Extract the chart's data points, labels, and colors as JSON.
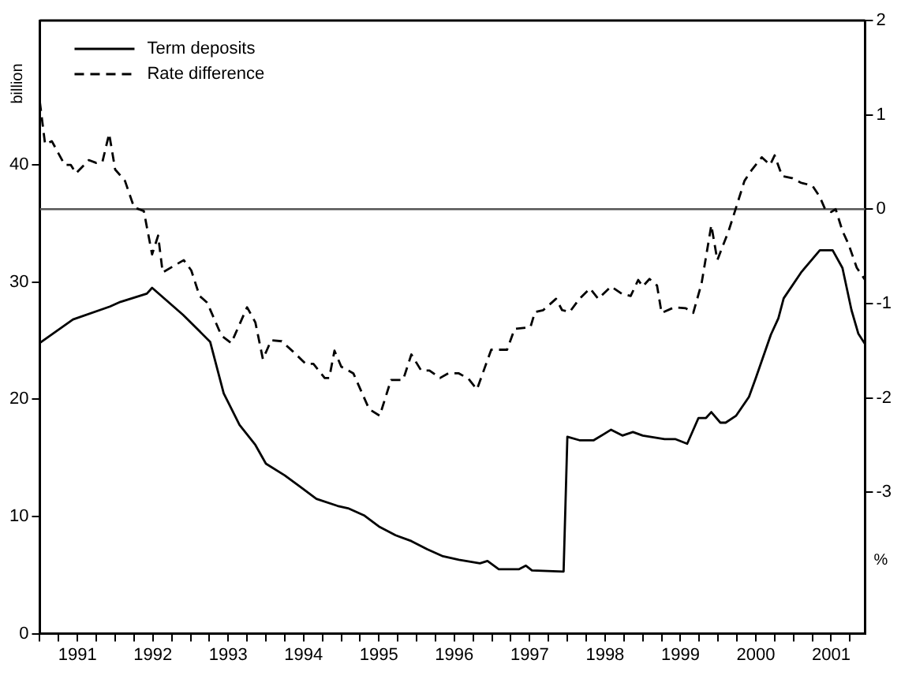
{
  "chart_data": {
    "type": "line",
    "ylabel": "billion",
    "y2label": "%",
    "legend": "top left",
    "grid": false,
    "marker": "none",
    "xlim": [
      1991,
      2001.95
    ],
    "xticks": [
      {
        "value": 1991,
        "label": null
      },
      {
        "value": 1991.25,
        "label": null
      },
      {
        "value": 1991.5,
        "label": "1991"
      },
      {
        "value": 1991.75,
        "label": null
      },
      {
        "value": 1992,
        "label": null
      },
      {
        "value": 1992.25,
        "label": null
      },
      {
        "value": 1992.5,
        "label": "1992"
      },
      {
        "value": 1992.75,
        "label": null
      },
      {
        "value": 1993,
        "label": null
      },
      {
        "value": 1993.25,
        "label": null
      },
      {
        "value": 1993.5,
        "label": "1993"
      },
      {
        "value": 1993.75,
        "label": null
      },
      {
        "value": 1994,
        "label": null
      },
      {
        "value": 1994.25,
        "label": null
      },
      {
        "value": 1994.5,
        "label": "1994"
      },
      {
        "value": 1994.75,
        "label": null
      },
      {
        "value": 1995,
        "label": null
      },
      {
        "value": 1995.25,
        "label": null
      },
      {
        "value": 1995.5,
        "label": "1995"
      },
      {
        "value": 1995.75,
        "label": null
      },
      {
        "value": 1996,
        "label": null
      },
      {
        "value": 1996.25,
        "label": null
      },
      {
        "value": 1996.5,
        "label": "1996"
      },
      {
        "value": 1996.75,
        "label": null
      },
      {
        "value": 1997,
        "label": null
      },
      {
        "value": 1997.25,
        "label": null
      },
      {
        "value": 1997.5,
        "label": "1997"
      },
      {
        "value": 1997.75,
        "label": null
      },
      {
        "value": 1998,
        "label": null
      },
      {
        "value": 1998.25,
        "label": null
      },
      {
        "value": 1998.5,
        "label": "1998"
      },
      {
        "value": 1998.75,
        "label": null
      },
      {
        "value": 1999,
        "label": null
      },
      {
        "value": 1999.25,
        "label": null
      },
      {
        "value": 1999.5,
        "label": "1999"
      },
      {
        "value": 1999.75,
        "label": null
      },
      {
        "value": 2000,
        "label": null
      },
      {
        "value": 2000.25,
        "label": null
      },
      {
        "value": 2000.5,
        "label": "2000"
      },
      {
        "value": 2000.75,
        "label": null
      },
      {
        "value": 2001,
        "label": null
      },
      {
        "value": 2001.25,
        "label": null
      },
      {
        "value": 2001.5,
        "label": "2001"
      },
      {
        "value": 2001.75,
        "label": null
      }
    ],
    "ylim": [
      0,
      52.3
    ],
    "yticks": [
      0,
      10,
      20,
      30,
      40
    ],
    "y2lim": [
      -4.5,
      2
    ],
    "y2ticks": [
      -3,
      -2,
      -1,
      0,
      1,
      2
    ],
    "ref_lines": [
      {
        "axis": "y2",
        "value": 0,
        "label": null,
        "color": "#555555",
        "line_style": "solid"
      }
    ],
    "series": [
      {
        "name": "Term deposits",
        "color": "#000000",
        "axis": "y",
        "line_style": "solid",
        "x": [
          1991,
          1991.44,
          1991.93,
          1992.07,
          1992.42,
          1992.49,
          1992.9,
          1993.26,
          1993.44,
          1993.65,
          1993.86,
          1994,
          1994.25,
          1994.46,
          1994.67,
          1994.95,
          1995.09,
          1995.3,
          1995.51,
          1995.72,
          1995.93,
          1996.14,
          1996.35,
          1996.56,
          1996.84,
          1996.94,
          1997.09,
          1997.36,
          1997.45,
          1997.53,
          1997.95,
          1998,
          1998.16,
          1998.35,
          1998.58,
          1998.73,
          1998.87,
          1999,
          1999.29,
          1999.43,
          1999.59,
          1999.74,
          1999.84,
          1999.91,
          2000.03,
          2000.1,
          2000.24,
          2000.41,
          2000.5,
          2000.7,
          2000.8,
          2000.87,
          2001.1,
          2001.35,
          2001.52,
          2001.65,
          2001.77,
          2001.86,
          2001.95
        ],
        "values": [
          24.8,
          26.8,
          27.9,
          28.3,
          29.0,
          29.5,
          27.2,
          24.9,
          20.5,
          17.8,
          16.1,
          14.5,
          13.5,
          12.5,
          11.5,
          10.9,
          10.7,
          10.1,
          9.1,
          8.4,
          7.9,
          7.2,
          6.6,
          6.3,
          6.0,
          6.2,
          5.5,
          5.5,
          5.8,
          5.4,
          5.3,
          16.8,
          16.5,
          16.5,
          17.4,
          16.9,
          17.2,
          16.9,
          16.6,
          16.6,
          16.2,
          18.4,
          18.4,
          18.9,
          18.0,
          18.0,
          18.6,
          20.2,
          21.8,
          25.5,
          26.9,
          28.6,
          30.8,
          32.7,
          32.7,
          31.2,
          27.6,
          25.6,
          24.7
        ]
      },
      {
        "name": "Rate difference",
        "color": "#000000",
        "axis": "y2",
        "line_style": "dashed",
        "x": [
          1991,
          1991.07,
          1991.16,
          1991.33,
          1991.41,
          1991.48,
          1991.65,
          1991.75,
          1991.83,
          1991.92,
          1992,
          1992.13,
          1992.25,
          1992.38,
          1992.49,
          1992.57,
          1992.63,
          1992.91,
          1993.01,
          1993.12,
          1993.22,
          1993.41,
          1993.54,
          1993.75,
          1993.86,
          1993.96,
          1994.07,
          1994.21,
          1994.36,
          1994.53,
          1994.63,
          1994.78,
          1994.84,
          1994.91,
          1995,
          1995.16,
          1995.37,
          1995.51,
          1995.66,
          1995.82,
          1995.93,
          1996.06,
          1996.17,
          1996.31,
          1996.42,
          1996.56,
          1996.69,
          1996.8,
          1996.99,
          1997.2,
          1997.3,
          1997.51,
          1997.57,
          1997.68,
          1997.85,
          1997.93,
          1998.03,
          1998.16,
          1998.3,
          1998.41,
          1998.58,
          1998.73,
          1998.84,
          1998.94,
          1999,
          1999.09,
          1999.19,
          1999.25,
          1999.42,
          1999.57,
          1999.67,
          1999.78,
          1999.91,
          1999.99,
          2000.14,
          2000.24,
          2000.35,
          2000.45,
          2000.58,
          2000.69,
          2000.75,
          2000.85,
          2000.98,
          2001.1,
          2001.25,
          2001.35,
          2001.42,
          2001.5,
          2001.56,
          2001.65,
          2001.73,
          2001.84,
          2001.95
        ],
        "values": [
          1.14,
          0.69,
          0.72,
          0.47,
          0.47,
          0.38,
          0.52,
          0.49,
          0.5,
          0.8,
          0.42,
          0.3,
          0.02,
          -0.02,
          -0.48,
          -0.28,
          -0.67,
          -0.54,
          -0.65,
          -0.92,
          -0.99,
          -1.34,
          -1.42,
          -1.04,
          -1.2,
          -1.59,
          -1.39,
          -1.4,
          -1.51,
          -1.64,
          -1.64,
          -1.79,
          -1.79,
          -1.5,
          -1.67,
          -1.74,
          -2.12,
          -2.19,
          -1.81,
          -1.81,
          -1.54,
          -1.71,
          -1.71,
          -1.79,
          -1.74,
          -1.74,
          -1.8,
          -1.91,
          -1.49,
          -1.49,
          -1.27,
          -1.25,
          -1.09,
          -1.07,
          -0.95,
          -1.07,
          -1.09,
          -0.95,
          -0.84,
          -0.95,
          -0.82,
          -0.9,
          -0.92,
          -0.75,
          -0.82,
          -0.74,
          -0.81,
          -1.1,
          -1.04,
          -1.05,
          -1.1,
          -0.79,
          -0.17,
          -0.54,
          -0.23,
          0.02,
          0.3,
          0.42,
          0.55,
          0.47,
          0.57,
          0.35,
          0.33,
          0.28,
          0.25,
          0.13,
          0,
          -0.03,
          0,
          -0.23,
          -0.37,
          -0.62,
          -0.75
        ]
      }
    ]
  }
}
